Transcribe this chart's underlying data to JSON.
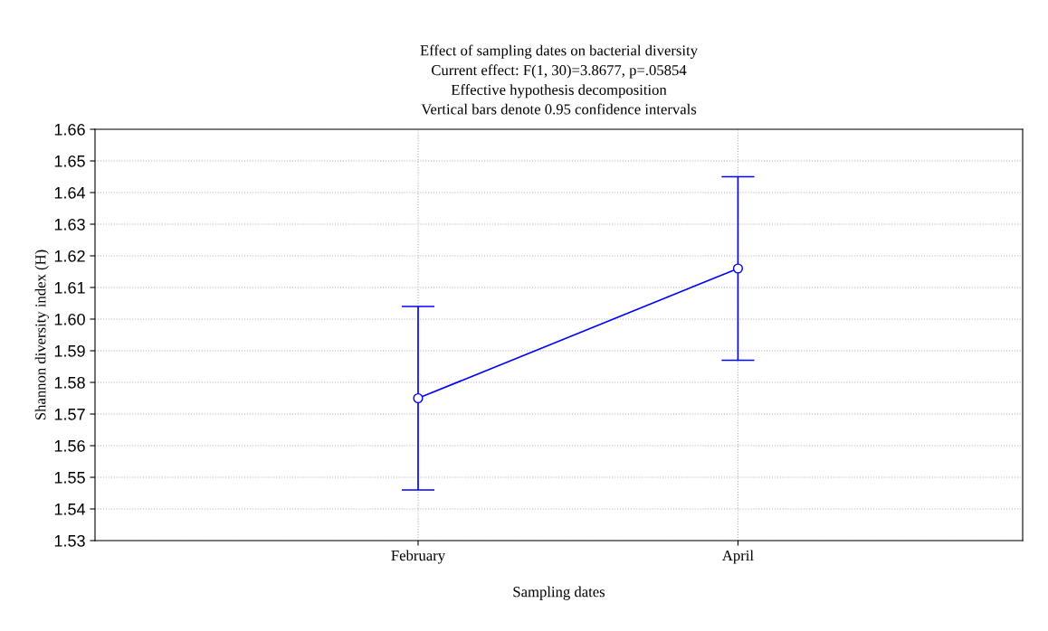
{
  "chart_data": {
    "type": "line",
    "title": "Effect of sampling dates on bacterial diversity\nCurrent effect: F(1, 30)=3.8677, p=.05854\nEffective hypothesis decomposition\nVertical bars denote 0.95 confidence intervals",
    "xlabel": "Sampling dates",
    "ylabel": "Shannon diversity index (H)",
    "categories": [
      "February",
      "April"
    ],
    "series": [
      {
        "color": "#0000ff",
        "values": [
          1.575,
          1.616
        ],
        "errors": [
          0.029,
          0.029
        ]
      }
    ],
    "ylim": [
      1.53,
      1.66
    ],
    "yticks": [
      {
        "value": 1.53,
        "label": "1.53"
      },
      {
        "value": 1.54,
        "label": "1.54"
      },
      {
        "value": 1.55,
        "label": "1.55"
      },
      {
        "value": 1.56,
        "label": "1.56"
      },
      {
        "value": 1.57,
        "label": "1.57"
      },
      {
        "value": 1.58,
        "label": "1.58"
      },
      {
        "value": 1.59,
        "label": "1.59"
      },
      {
        "value": 1.6,
        "label": "1.60"
      },
      {
        "value": 1.61,
        "label": "1.61"
      },
      {
        "value": 1.62,
        "label": "1.62"
      },
      {
        "value": 1.63,
        "label": "1.63"
      },
      {
        "value": 1.64,
        "label": "1.64"
      },
      {
        "value": 1.65,
        "label": "1.65"
      },
      {
        "value": 1.66,
        "label": "1.66"
      }
    ],
    "grid": true,
    "marker": "circle",
    "line_style": "solid",
    "legend": false
  }
}
